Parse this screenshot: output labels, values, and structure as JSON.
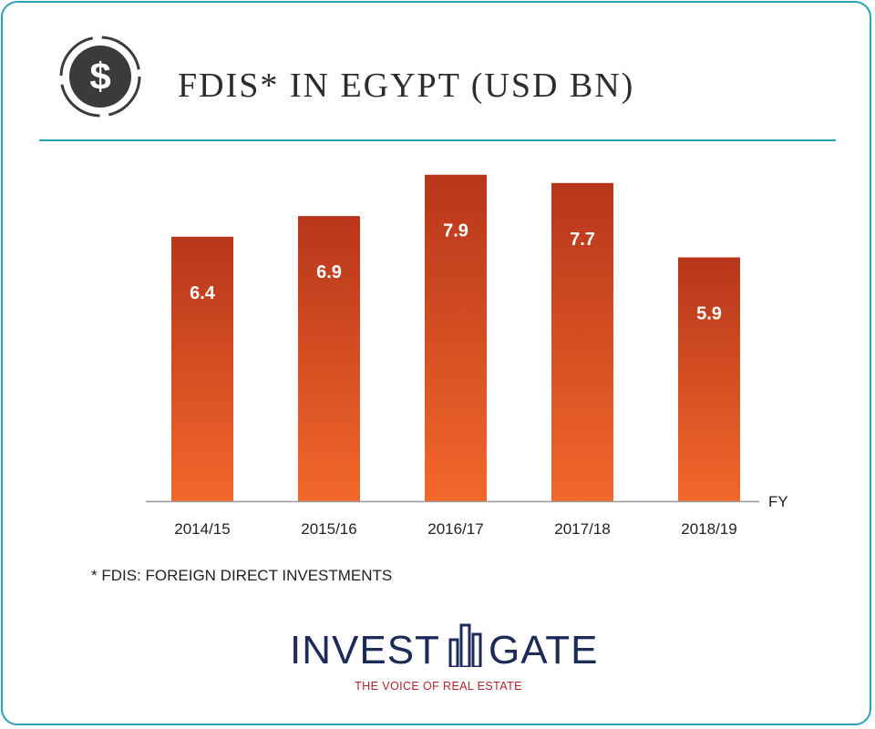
{
  "header": {
    "title": "FDIS* IN EGYPT (USD BN)",
    "icon": "dollar-coin-icon"
  },
  "chart_data": {
    "type": "bar",
    "categories": [
      "2014/15",
      "2015/16",
      "2016/17",
      "2017/18",
      "2018/19"
    ],
    "values": [
      6.4,
      6.9,
      7.9,
      7.7,
      5.9
    ],
    "data_labels": [
      "6.4",
      "6.9",
      "7.9",
      "7.7",
      "5.9"
    ],
    "xlabel": "FY",
    "ylabel": "",
    "ylim": [
      0,
      8.6
    ],
    "grid": false,
    "colors": {
      "bar_top": "#b7361b",
      "bar_bottom": "#f2672a",
      "label": "#ffffff",
      "axis": "#999999"
    }
  },
  "footnote": "* FDIS: FOREIGN DIRECT INVESTMENTS",
  "logo": {
    "name_left": "INVEST",
    "name_right": "GATE",
    "tagline": "THE VOICE OF REAL ESTATE"
  },
  "colors": {
    "border": "#29a3b8",
    "brand_navy": "#1d2b58",
    "brand_red": "#b5212b"
  }
}
